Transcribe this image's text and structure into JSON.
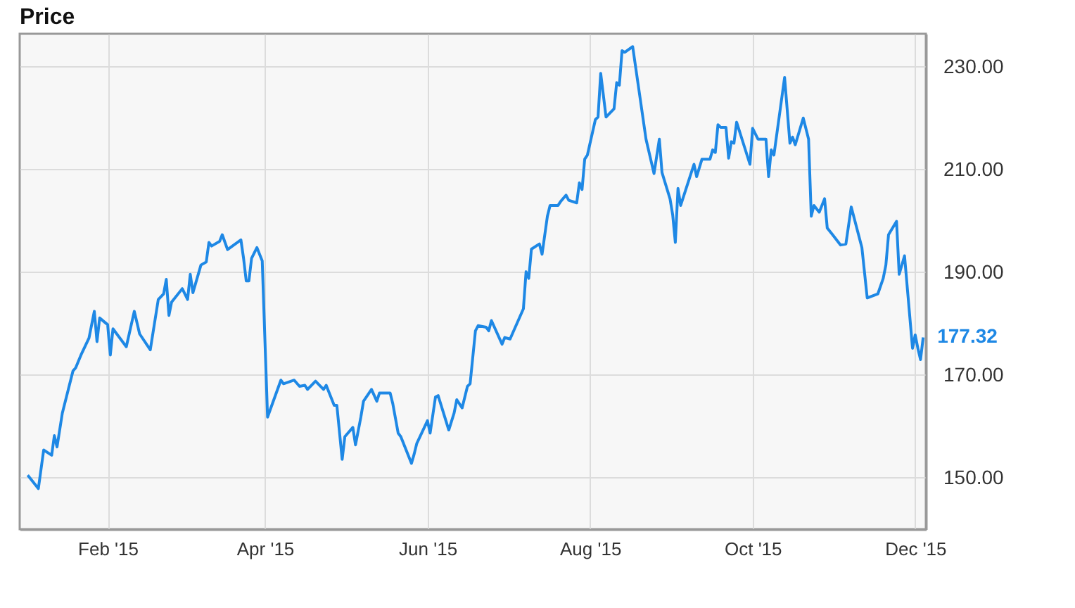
{
  "chart_data": {
    "type": "line",
    "title": "Price",
    "x": [
      "2015-01-02",
      "2015-01-06",
      "2015-01-08",
      "2015-01-11",
      "2015-01-12",
      "2015-01-13",
      "2015-01-15",
      "2015-01-19",
      "2015-01-20",
      "2015-01-22",
      "2015-01-25",
      "2015-01-27",
      "2015-01-28",
      "2015-01-29",
      "2015-02-01",
      "2015-02-02",
      "2015-02-03",
      "2015-02-08",
      "2015-02-11",
      "2015-02-13",
      "2015-02-17",
      "2015-02-20",
      "2015-02-22",
      "2015-02-23",
      "2015-02-24",
      "2015-02-25",
      "2015-03-01",
      "2015-03-03",
      "2015-03-04",
      "2015-03-05",
      "2015-03-08",
      "2015-03-10",
      "2015-03-11",
      "2015-03-12",
      "2015-03-15",
      "2015-03-16",
      "2015-03-18",
      "2015-03-23",
      "2015-03-24",
      "2015-03-25",
      "2015-03-26",
      "2015-03-27",
      "2015-03-29",
      "2015-03-31",
      "2015-04-02",
      "2015-04-07",
      "2015-04-08",
      "2015-04-12",
      "2015-04-14",
      "2015-04-16",
      "2015-04-17",
      "2015-04-20",
      "2015-04-23",
      "2015-04-24",
      "2015-04-27",
      "2015-04-28",
      "2015-04-30",
      "2015-05-01",
      "2015-05-04",
      "2015-05-05",
      "2015-05-07",
      "2015-05-08",
      "2015-05-11",
      "2015-05-13",
      "2015-05-14",
      "2015-05-18",
      "2015-05-19",
      "2015-05-21",
      "2015-05-22",
      "2015-05-26",
      "2015-05-27",
      "2015-05-28",
      "2015-06-01",
      "2015-06-02",
      "2015-06-04",
      "2015-06-05",
      "2015-06-09",
      "2015-06-11",
      "2015-06-12",
      "2015-06-14",
      "2015-06-16",
      "2015-06-17",
      "2015-06-19",
      "2015-06-20",
      "2015-06-23",
      "2015-06-24",
      "2015-06-25",
      "2015-06-29",
      "2015-06-30",
      "2015-07-02",
      "2015-07-07",
      "2015-07-08",
      "2015-07-09",
      "2015-07-10",
      "2015-07-13",
      "2015-07-14",
      "2015-07-16",
      "2015-07-17",
      "2015-07-20",
      "2015-07-21",
      "2015-07-23",
      "2015-07-24",
      "2015-07-27",
      "2015-07-28",
      "2015-07-29",
      "2015-07-30",
      "2015-07-31",
      "2015-08-03",
      "2015-08-04",
      "2015-08-05",
      "2015-08-07",
      "2015-08-10",
      "2015-08-11",
      "2015-08-12",
      "2015-08-13",
      "2015-08-14",
      "2015-08-17",
      "2015-08-19",
      "2015-08-22",
      "2015-08-25",
      "2015-08-27",
      "2015-08-28",
      "2015-08-31",
      "2015-09-01",
      "2015-09-02",
      "2015-09-03",
      "2015-09-04",
      "2015-09-09",
      "2015-09-10",
      "2015-09-12",
      "2015-09-15",
      "2015-09-16",
      "2015-09-17",
      "2015-09-18",
      "2015-09-19",
      "2015-09-21",
      "2015-09-22",
      "2015-09-23",
      "2015-09-24",
      "2015-09-25",
      "2015-09-30",
      "2015-10-01",
      "2015-10-03",
      "2015-10-06",
      "2015-10-07",
      "2015-10-08",
      "2015-10-09",
      "2015-10-13",
      "2015-10-15",
      "2015-10-16",
      "2015-10-17",
      "2015-10-20",
      "2015-10-22",
      "2015-10-23",
      "2015-10-24",
      "2015-10-26",
      "2015-10-28",
      "2015-10-29",
      "2015-10-31",
      "2015-11-03",
      "2015-11-05",
      "2015-11-07",
      "2015-11-11",
      "2015-11-13",
      "2015-11-17",
      "2015-11-19",
      "2015-11-20",
      "2015-11-21",
      "2015-11-24",
      "2015-11-25",
      "2015-11-27",
      "2015-11-30",
      "2015-12-01",
      "2015-12-02",
      "2015-12-03",
      "2015-12-04"
    ],
    "series": [
      {
        "color": "#1e88e5",
        "values": [
          150.5,
          147.9,
          155.4,
          154.4,
          158.2,
          156,
          162.6,
          170.8,
          171.4,
          173.9,
          177.2,
          182.4,
          176.5,
          181.1,
          179.8,
          173.9,
          179,
          175.5,
          182.4,
          178,
          174.9,
          184.7,
          185.8,
          188.6,
          181.6,
          184.2,
          186.8,
          184.7,
          189.6,
          186,
          191.4,
          192,
          195.8,
          195.1,
          196,
          197.3,
          194.4,
          196.3,
          192.7,
          188.3,
          188.3,
          192.7,
          194.8,
          192.2,
          161.8,
          169,
          168.3,
          169,
          167.8,
          168,
          167.2,
          168.8,
          167.2,
          168,
          164.1,
          164.1,
          153.6,
          158,
          159.8,
          156.4,
          161.8,
          164.9,
          167.2,
          164.9,
          166.5,
          166.5,
          164.4,
          158.7,
          158,
          152.8,
          154.6,
          156.7,
          161.1,
          158.7,
          165.7,
          166,
          159.3,
          162.6,
          165.2,
          163.6,
          167.8,
          168.3,
          178.6,
          179.6,
          179.3,
          178.6,
          180.6,
          176,
          177.3,
          177,
          182.9,
          190.1,
          188.8,
          194.5,
          195.5,
          193.5,
          200.9,
          203,
          203,
          203.8,
          205,
          204,
          203.5,
          207.4,
          206.1,
          212,
          212.8,
          219.7,
          220.2,
          228.7,
          220.2,
          221.8,
          226.9,
          226.4,
          233.1,
          232.8,
          233.9,
          226.7,
          215.9,
          209.2,
          215.9,
          209.4,
          204.3,
          201.2,
          195.8,
          206.3,
          203,
          211,
          208.6,
          212,
          212,
          213.8,
          213.3,
          218.7,
          218.2,
          218.2,
          212.2,
          215.4,
          215.1,
          219.2,
          211,
          218,
          215.9,
          215.9,
          208.6,
          213.8,
          212.8,
          227.9,
          215.1,
          216.3,
          214.8,
          220,
          215.9,
          200.9,
          203,
          201.7,
          204.3,
          198.6,
          197.3,
          195.3,
          195.5,
          202.7,
          194.8,
          185,
          185.8,
          188.8,
          191.4,
          197.3,
          199.9,
          189.6,
          193.2,
          175.2,
          177.8,
          175.2,
          173,
          177.32
        ]
      }
    ],
    "xlim": [
      "2014-12-30",
      "2015-12-05"
    ],
    "xticks": [
      {
        "value": "2015-02-01",
        "label": "Feb '15"
      },
      {
        "value": "2015-04-01",
        "label": "Apr '15"
      },
      {
        "value": "2015-06-01",
        "label": "Jun '15"
      },
      {
        "value": "2015-08-01",
        "label": "Aug '15"
      },
      {
        "value": "2015-10-01",
        "label": "Oct '15"
      },
      {
        "value": "2015-12-01",
        "label": "Dec '15"
      }
    ],
    "ylim": [
      140,
      236.4
    ],
    "yticks": [
      {
        "value": 150,
        "label": "150.00"
      },
      {
        "value": 170,
        "label": "170.00"
      },
      {
        "value": 190,
        "label": "190.00"
      },
      {
        "value": 210,
        "label": "210.00"
      },
      {
        "value": 230,
        "label": "230.00"
      }
    ],
    "annotations": [
      {
        "text": "177.32",
        "x": "2015-12-04",
        "y": 177.32
      }
    ],
    "grid": true,
    "legend": false,
    "marker": "none",
    "line_style": "solid"
  }
}
